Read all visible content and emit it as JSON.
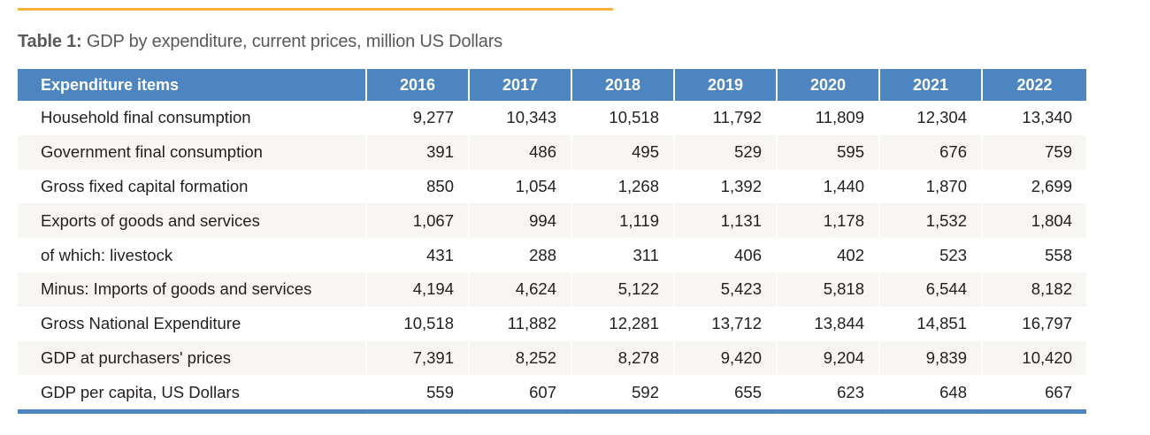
{
  "document": {
    "accent_color": "#fbb03b",
    "header_color": "#4d85c1",
    "stripe_color": "#f7f6f3"
  },
  "caption": {
    "label": "Table 1:",
    "text": " GDP by expenditure, current prices, million US Dollars"
  },
  "table": {
    "headers": [
      "Expenditure items",
      "2016",
      "2017",
      "2018",
      "2019",
      "2020",
      "2021",
      "2022"
    ],
    "rows": [
      {
        "item": "Household final consumption",
        "values": [
          "9,277",
          "10,343",
          "10,518",
          "11,792",
          "11,809",
          "12,304",
          "13,340"
        ]
      },
      {
        "item": "Government final consumption",
        "values": [
          "391",
          "486",
          "495",
          "529",
          "595",
          "676",
          "759"
        ]
      },
      {
        "item": "Gross fixed capital formation",
        "values": [
          "850",
          "1,054",
          "1,268",
          "1,392",
          "1,440",
          "1,870",
          "2,699"
        ]
      },
      {
        "item": "Exports of goods and services",
        "values": [
          "1,067",
          "994",
          "1,119",
          "1,131",
          "1,178",
          "1,532",
          "1,804"
        ]
      },
      {
        "item": "of which: livestock",
        "values": [
          "431",
          "288",
          "311",
          "406",
          "402",
          "523",
          "558"
        ]
      },
      {
        "item": "Minus: Imports of goods and services",
        "values": [
          "4,194",
          "4,624",
          "5,122",
          "5,423",
          "5,818",
          "6,544",
          "8,182"
        ]
      },
      {
        "item": "Gross National Expenditure",
        "values": [
          "10,518",
          "11,882",
          "12,281",
          "13,712",
          "13,844",
          "14,851",
          "16,797"
        ]
      },
      {
        "item": "GDP at purchasers' prices",
        "values": [
          "7,391",
          "8,252",
          "8,278",
          "9,420",
          "9,204",
          "9,839",
          "10,420"
        ]
      },
      {
        "item": "GDP per capita, US Dollars",
        "values": [
          "559",
          "607",
          "592",
          "655",
          "623",
          "648",
          "667"
        ]
      }
    ]
  },
  "chart_data": {
    "type": "table",
    "title": "Table 1: GDP by expenditure, current prices, million US Dollars",
    "columns": [
      "Expenditure items",
      "2016",
      "2017",
      "2018",
      "2019",
      "2020",
      "2021",
      "2022"
    ],
    "categories": [
      "2016",
      "2017",
      "2018",
      "2019",
      "2020",
      "2021",
      "2022"
    ],
    "series": [
      {
        "name": "Household final consumption",
        "values": [
          9277,
          10343,
          10518,
          11792,
          11809,
          12304,
          13340
        ]
      },
      {
        "name": "Government final consumption",
        "values": [
          391,
          486,
          495,
          529,
          595,
          676,
          759
        ]
      },
      {
        "name": "Gross fixed capital formation",
        "values": [
          850,
          1054,
          1268,
          1392,
          1440,
          1870,
          2699
        ]
      },
      {
        "name": "Exports of goods and services",
        "values": [
          1067,
          994,
          1119,
          1131,
          1178,
          1532,
          1804
        ]
      },
      {
        "name": "of which: livestock",
        "values": [
          431,
          288,
          311,
          406,
          402,
          523,
          558
        ]
      },
      {
        "name": "Minus: Imports of goods and services",
        "values": [
          4194,
          4624,
          5122,
          5423,
          5818,
          6544,
          8182
        ]
      },
      {
        "name": "Gross National Expenditure",
        "values": [
          10518,
          11882,
          12281,
          13712,
          13844,
          14851,
          16797
        ]
      },
      {
        "name": "GDP at purchasers' prices",
        "values": [
          7391,
          8252,
          8278,
          9420,
          9204,
          9839,
          10420
        ]
      },
      {
        "name": "GDP per capita, US Dollars",
        "values": [
          559,
          607,
          592,
          655,
          623,
          648,
          667
        ]
      }
    ]
  }
}
